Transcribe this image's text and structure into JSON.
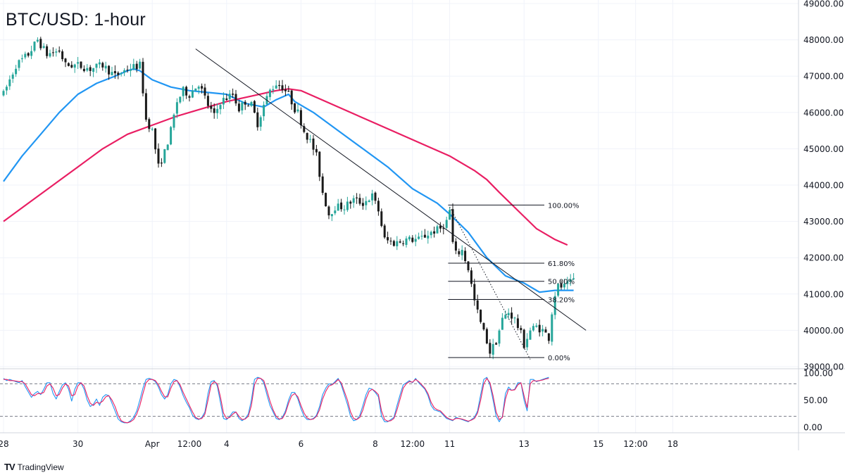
{
  "title": "BTC/USD: 1-hour",
  "brand": {
    "logo": "TV",
    "name": "TradingView"
  },
  "icons": {
    "brand_logo": "tradingview-logo-icon"
  },
  "colors": {
    "up_candle": "#26a69a",
    "down_candle": "#1a1a1a",
    "ma_fast": "#2196f3",
    "ma_slow": "#e91e63",
    "trendline": "#131722",
    "stoch_k": "#2196f3",
    "stoch_d": "#e91e63"
  },
  "chart_data": [
    {
      "type": "candlestick",
      "title": "BTC/USD: 1-hour",
      "ylim": [
        39000,
        49000
      ],
      "y_ticks": [
        "49000.00",
        "48000.00",
        "47000.00",
        "46000.00",
        "45000.00",
        "44000.00",
        "43000.00",
        "42000.00",
        "41000.00",
        "40000.00",
        "39000.00"
      ],
      "x_ticks": [
        {
          "label": "28",
          "t": 0.0
        },
        {
          "label": "30",
          "t": 24.0
        },
        {
          "label": "Apr",
          "t": 48.0
        },
        {
          "label": "12:00",
          "t": 60.0
        },
        {
          "label": "4",
          "t": 72.0
        },
        {
          "label": "6",
          "t": 96.0
        },
        {
          "label": "8",
          "t": 120.0
        },
        {
          "label": "12:00",
          "t": 132.0
        },
        {
          "label": "11",
          "t": 144.0
        },
        {
          "label": "13",
          "t": 168.0
        },
        {
          "label": "15",
          "t": 192.0
        },
        {
          "label": "12:00",
          "t": 204.0
        },
        {
          "label": "18",
          "t": 216.0
        }
      ],
      "price_path": [
        {
          "t": 0,
          "p": 46500
        },
        {
          "t": 4,
          "p": 47300
        },
        {
          "t": 8,
          "p": 47600
        },
        {
          "t": 11,
          "p": 48000
        },
        {
          "t": 14,
          "p": 47600
        },
        {
          "t": 18,
          "p": 47700
        },
        {
          "t": 20,
          "p": 47300
        },
        {
          "t": 24,
          "p": 47300
        },
        {
          "t": 28,
          "p": 47200
        },
        {
          "t": 32,
          "p": 47300
        },
        {
          "t": 36,
          "p": 47000
        },
        {
          "t": 40,
          "p": 47200
        },
        {
          "t": 44,
          "p": 47300
        },
        {
          "t": 45,
          "p": 46600
        },
        {
          "t": 46,
          "p": 45800
        },
        {
          "t": 48,
          "p": 45500
        },
        {
          "t": 50,
          "p": 44500
        },
        {
          "t": 52,
          "p": 44900
        },
        {
          "t": 54,
          "p": 45500
        },
        {
          "t": 56,
          "p": 46300
        },
        {
          "t": 58,
          "p": 46600
        },
        {
          "t": 60,
          "p": 46500
        },
        {
          "t": 63,
          "p": 46800
        },
        {
          "t": 66,
          "p": 46200
        },
        {
          "t": 68,
          "p": 45900
        },
        {
          "t": 70,
          "p": 46300
        },
        {
          "t": 72,
          "p": 46400
        },
        {
          "t": 74,
          "p": 46500
        },
        {
          "t": 76,
          "p": 46100
        },
        {
          "t": 78,
          "p": 46300
        },
        {
          "t": 80,
          "p": 46200
        },
        {
          "t": 82,
          "p": 45700
        },
        {
          "t": 84,
          "p": 46200
        },
        {
          "t": 86,
          "p": 46600
        },
        {
          "t": 88,
          "p": 46800
        },
        {
          "t": 90,
          "p": 46700
        },
        {
          "t": 92,
          "p": 46500
        },
        {
          "t": 94,
          "p": 46100
        },
        {
          "t": 95,
          "p": 46000
        },
        {
          "t": 97,
          "p": 45500
        },
        {
          "t": 99,
          "p": 45200
        },
        {
          "t": 101,
          "p": 44800
        },
        {
          "t": 103,
          "p": 43800
        },
        {
          "t": 105,
          "p": 43200
        },
        {
          "t": 107,
          "p": 43400
        },
        {
          "t": 110,
          "p": 43400
        },
        {
          "t": 113,
          "p": 43600
        },
        {
          "t": 116,
          "p": 43500
        },
        {
          "t": 119,
          "p": 43700
        },
        {
          "t": 121,
          "p": 43300
        },
        {
          "t": 123,
          "p": 42500
        },
        {
          "t": 126,
          "p": 42400
        },
        {
          "t": 130,
          "p": 42500
        },
        {
          "t": 134,
          "p": 42500
        },
        {
          "t": 138,
          "p": 42700
        },
        {
          "t": 141,
          "p": 42800
        },
        {
          "t": 143,
          "p": 43000
        },
        {
          "t": 144,
          "p": 43300
        },
        {
          "t": 145,
          "p": 42400
        },
        {
          "t": 146,
          "p": 42100
        },
        {
          "t": 148,
          "p": 42200
        },
        {
          "t": 150,
          "p": 41700
        },
        {
          "t": 152,
          "p": 40800
        },
        {
          "t": 154,
          "p": 40200
        },
        {
          "t": 156,
          "p": 39700
        },
        {
          "t": 157,
          "p": 39400
        },
        {
          "t": 159,
          "p": 39700
        },
        {
          "t": 161,
          "p": 40300
        },
        {
          "t": 163,
          "p": 40500
        },
        {
          "t": 165,
          "p": 40300
        },
        {
          "t": 167,
          "p": 39900
        },
        {
          "t": 168,
          "p": 39600
        },
        {
          "t": 170,
          "p": 40000
        },
        {
          "t": 172,
          "p": 40100
        },
        {
          "t": 174,
          "p": 40000
        },
        {
          "t": 176,
          "p": 39800
        },
        {
          "t": 177,
          "p": 40500
        },
        {
          "t": 178,
          "p": 41000
        },
        {
          "t": 179,
          "p": 41200
        },
        {
          "t": 181,
          "p": 41200
        },
        {
          "t": 183,
          "p": 41300
        },
        {
          "t": 184,
          "p": 41400
        }
      ],
      "series": [
        {
          "name": "",
          "kind": "moving-average",
          "color": "#2196f3",
          "points": [
            [
              0,
              44100
            ],
            [
              6,
              44800
            ],
            [
              12,
              45400
            ],
            [
              18,
              46000
            ],
            [
              24,
              46500
            ],
            [
              30,
              46800
            ],
            [
              36,
              47000
            ],
            [
              40,
              47150
            ],
            [
              42,
              47200
            ],
            [
              44,
              47150
            ],
            [
              48,
              46900
            ],
            [
              54,
              46700
            ],
            [
              60,
              46600
            ],
            [
              66,
              46550
            ],
            [
              72,
              46500
            ],
            [
              78,
              46250
            ],
            [
              84,
              46150
            ],
            [
              88,
              46350
            ],
            [
              92,
              46500
            ],
            [
              94,
              46300
            ],
            [
              100,
              46000
            ],
            [
              108,
              45500
            ],
            [
              116,
              45000
            ],
            [
              124,
              44500
            ],
            [
              132,
              43900
            ],
            [
              140,
              43500
            ],
            [
              144,
              43200
            ],
            [
              150,
              42700
            ],
            [
              156,
              42000
            ],
            [
              162,
              41500
            ],
            [
              168,
              41300
            ],
            [
              173,
              41050
            ],
            [
              178,
              41100
            ],
            [
              184,
              41100
            ]
          ]
        },
        {
          "name": "",
          "kind": "moving-average",
          "color": "#e91e63",
          "points": [
            [
              0,
              43000
            ],
            [
              8,
              43500
            ],
            [
              16,
              44000
            ],
            [
              24,
              44500
            ],
            [
              32,
              45000
            ],
            [
              40,
              45400
            ],
            [
              48,
              45650
            ],
            [
              56,
              45900
            ],
            [
              64,
              46100
            ],
            [
              72,
              46300
            ],
            [
              80,
              46450
            ],
            [
              88,
              46600
            ],
            [
              92,
              46650
            ],
            [
              96,
              46600
            ],
            [
              104,
              46300
            ],
            [
              112,
              46000
            ],
            [
              120,
              45700
            ],
            [
              128,
              45400
            ],
            [
              136,
              45100
            ],
            [
              144,
              44800
            ],
            [
              152,
              44400
            ],
            [
              156,
              44150
            ],
            [
              160,
              43800
            ],
            [
              166,
              43300
            ],
            [
              172,
              42800
            ],
            [
              178,
              42500
            ],
            [
              182,
              42350
            ]
          ]
        },
        {
          "name": "",
          "kind": "trendline",
          "color": "#131722",
          "points": [
            [
              62,
              47750
            ],
            [
              188,
              40000
            ]
          ]
        },
        {
          "name": "",
          "kind": "fib-diagonal",
          "color": "#131722",
          "points": [
            [
              144,
              43400
            ],
            [
              170,
              39200
            ]
          ]
        }
      ],
      "fibonacci": {
        "t_start": 143.5,
        "t_end": 170,
        "levels": [
          {
            "label": "100.00%",
            "price": 43450
          },
          {
            "label": "61.80%",
            "price": 41850
          },
          {
            "label": "50.00%",
            "price": 41350
          },
          {
            "label": "38.20%",
            "price": 40850
          },
          {
            "label": "0.00%",
            "price": 39250
          }
        ]
      }
    },
    {
      "type": "line",
      "title": "",
      "ylim": [
        0,
        100
      ],
      "y_ticks": [
        "100.00",
        "50.00",
        "0.00"
      ],
      "levels": [
        80,
        20
      ],
      "series": [
        {
          "name": "",
          "color": "#2196f3",
          "values": [
            90,
            86,
            88,
            86,
            84,
            82,
            86,
            75,
            65,
            55,
            62,
            66,
            60,
            70,
            82,
            82,
            62,
            52,
            66,
            78,
            82,
            70,
            48,
            70,
            82,
            82,
            70,
            50,
            38,
            42,
            52,
            40,
            55,
            60,
            58,
            44,
            30,
            15,
            10,
            8,
            8,
            12,
            18,
            30,
            50,
            72,
            88,
            90,
            88,
            84,
            74,
            60,
            52,
            60,
            80,
            88,
            86,
            74,
            58,
            46,
            36,
            22,
            16,
            14,
            18,
            28,
            62,
            84,
            86,
            76,
            46,
            16,
            14,
            20,
            28,
            28,
            16,
            12,
            16,
            24,
            50,
            88,
            92,
            90,
            82,
            60,
            40,
            28,
            16,
            14,
            18,
            30,
            50,
            64,
            64,
            52,
            34,
            20,
            14,
            14,
            16,
            22,
            38,
            60,
            72,
            80,
            78,
            84,
            90,
            78,
            60,
            42,
            20,
            12,
            14,
            22,
            40,
            60,
            72,
            70,
            64,
            56,
            20,
            10,
            10,
            14,
            18,
            40,
            60,
            78,
            82,
            86,
            82,
            90,
            82,
            76,
            70,
            58,
            40,
            32,
            30,
            28,
            22,
            16,
            14,
            12,
            18,
            16,
            14,
            12,
            10,
            14,
            18,
            30,
            60,
            88,
            92,
            78,
            50,
            20,
            10,
            20,
            62,
            74,
            68,
            70,
            82,
            82,
            50,
            30,
            88,
            88,
            84,
            86,
            88,
            90,
            92
          ]
        },
        {
          "name": "",
          "color": "#e91e63",
          "values": [
            88,
            88,
            86,
            86,
            85,
            84,
            84,
            80,
            70,
            60,
            58,
            62,
            62,
            64,
            76,
            80,
            72,
            58,
            60,
            72,
            80,
            76,
            58,
            60,
            76,
            82,
            76,
            58,
            44,
            40,
            46,
            44,
            48,
            56,
            58,
            50,
            38,
            22,
            12,
            9,
            8,
            10,
            14,
            24,
            40,
            62,
            82,
            88,
            88,
            86,
            78,
            66,
            56,
            56,
            72,
            84,
            86,
            78,
            64,
            52,
            40,
            28,
            18,
            15,
            16,
            24,
            50,
            78,
            84,
            80,
            56,
            26,
            16,
            18,
            24,
            28,
            20,
            14,
            15,
            20,
            40,
            78,
            90,
            90,
            86,
            68,
            48,
            32,
            20,
            15,
            16,
            26,
            44,
            58,
            62,
            56,
            40,
            26,
            17,
            14,
            15,
            20,
            32,
            52,
            66,
            76,
            78,
            82,
            88,
            82,
            66,
            50,
            28,
            16,
            14,
            18,
            32,
            52,
            66,
            70,
            66,
            60,
            30,
            14,
            11,
            12,
            16,
            32,
            52,
            72,
            80,
            84,
            83,
            88,
            84,
            78,
            72,
            62,
            46,
            36,
            32,
            30,
            24,
            18,
            15,
            13,
            16,
            16,
            15,
            13,
            11,
            13,
            16,
            26,
            50,
            80,
            90,
            82,
            58,
            28,
            14,
            18,
            52,
            70,
            68,
            69,
            78,
            82,
            58,
            36,
            80,
            86,
            85,
            86,
            87,
            89,
            90
          ]
        }
      ]
    }
  ]
}
